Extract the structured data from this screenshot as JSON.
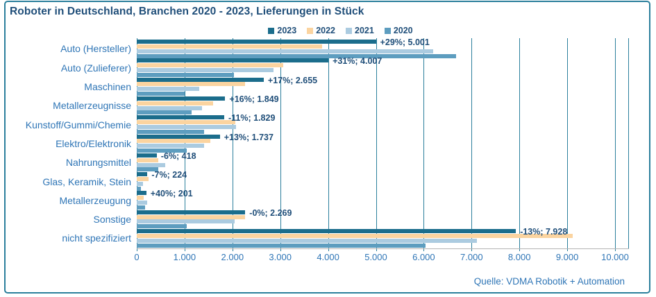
{
  "title": "Roboter in Deutschland, Branchen 2020 - 2023, Lieferungen in Stück",
  "source": "Quelle: VDMA Robotik + Automation",
  "colors": {
    "frame_and_grid": "#2b7f9c",
    "title_text": "#1f4e79",
    "category_text": "#2e75b6",
    "bar_label_text": "#1f4e79",
    "axis_baseline": "#b3b3b3",
    "series_2023": "#1b6d8c",
    "series_2022": "#fbd4a0",
    "series_2021": "#abcbe0",
    "series_2020": "#5d9dbf"
  },
  "legend": [
    {
      "label": "2023",
      "color": "#1b6d8c"
    },
    {
      "label": "2022",
      "color": "#fbd4a0"
    },
    {
      "label": "2021",
      "color": "#abcbe0"
    },
    {
      "label": "2020",
      "color": "#5d9dbf"
    }
  ],
  "chart_data": {
    "type": "bar",
    "orientation": "horizontal",
    "title": "Roboter in Deutschland, Branchen 2020 - 2023, Lieferungen in Stück",
    "categories": [
      "Auto (Hersteller)",
      "Auto (Zulieferer)",
      "Maschinen",
      "Metallerzeugnisse",
      "Kunstoff/Gummi/Chemie",
      "Elektro/Elektronik",
      "Nahrungsmittel",
      "Glas, Keramik, Stein",
      "Metallerzeugung",
      "Sonstige",
      "nicht spezifiziert"
    ],
    "series": [
      {
        "name": "2023",
        "color": "#1b6d8c",
        "values": [
          5001,
          4007,
          2655,
          1849,
          1829,
          1737,
          418,
          224,
          201,
          2269,
          7928
        ]
      },
      {
        "name": "2022",
        "color": "#fbd4a0",
        "values": [
          3877,
          3060,
          2269,
          1594,
          2055,
          1537,
          445,
          241,
          144,
          2270,
          9110
        ]
      },
      {
        "name": "2021",
        "color": "#abcbe0",
        "values": [
          6200,
          2860,
          1300,
          1360,
          2070,
          1410,
          590,
          130,
          215,
          2040,
          7110
        ]
      },
      {
        "name": "2020",
        "color": "#5d9dbf",
        "values": [
          6670,
          2030,
          1000,
          1150,
          1410,
          1040,
          450,
          90,
          175,
          1050,
          6040
        ]
      }
    ],
    "bar_labels": [
      "+29%; 5.001",
      "+31%; 4.007",
      "+17%; 2.655",
      "+16%; 1.849",
      "-11%; 1.829",
      "+13%; 1.737",
      "-6%; 418",
      "-7%; 224",
      "+40%; 201",
      "-0%; 2.269",
      "-13%; 7.928"
    ],
    "x_ticks": [
      "0",
      "1.000",
      "2.000",
      "3.000",
      "4.000",
      "5.000",
      "6.000",
      "7.000",
      "8.000",
      "9.000",
      "10.000"
    ],
    "xlim": [
      0,
      10000
    ],
    "legend_position": "top",
    "grid": "vertical"
  }
}
